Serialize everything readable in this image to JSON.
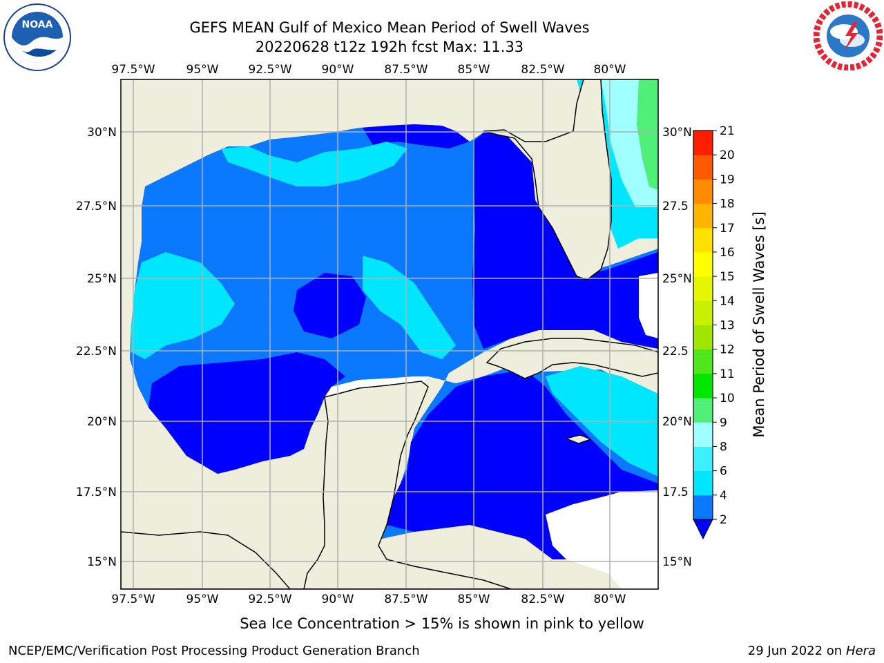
{
  "title": {
    "line1": "GEFS MEAN Gulf of Mexico Mean Period of Swell Waves",
    "line2": "20220628 t12z 192h fcst   Max: 11.33"
  },
  "logos": {
    "left": {
      "icon": "noaa-logo",
      "text": "NOAA",
      "ring_text": "NATIONAL OCEANIC AND ATMOSPHERIC ADMINISTRATION · U.S. DEPARTMENT OF COMMERCE"
    },
    "right": {
      "icon": "nws-logo",
      "ring_text": "NATIONAL WEATHER SERVICE"
    }
  },
  "map": {
    "lon_labels": [
      "97.5°W",
      "95°W",
      "92.5°W",
      "90°W",
      "87.5°W",
      "85°W",
      "82.5°W",
      "80°W"
    ],
    "lat_labels_left": [
      "30°N",
      "27.5°N",
      "25°N",
      "22.5°N",
      "20°N",
      "17.5°N",
      "15°N"
    ],
    "lat_labels_right": [
      "30°N",
      "27.5",
      "25°N",
      "22.5",
      "20°N",
      "17.5",
      "15°N"
    ],
    "colors": {
      "land": "#efeedc",
      "no_swell": "#ffffff",
      "grid": "#b0b0b0"
    }
  },
  "colorbar": {
    "label": "Mean Period of Swell Waves [s]",
    "ticks": [
      "2",
      "4",
      "6",
      "8",
      "9",
      "10",
      "11",
      "12",
      "13",
      "14",
      "15",
      "16",
      "17",
      "18",
      "19",
      "20",
      "21"
    ],
    "colors": [
      "#0a78ff",
      "#00e6ff",
      "#3cf0ff",
      "#a0ffff",
      "#50f078",
      "#00e600",
      "#50e61e",
      "#a0e600",
      "#c8f000",
      "#e6f500",
      "#ffff00",
      "#ffe100",
      "#ffb400",
      "#ff8c00",
      "#ff5a00",
      "#ff1e00"
    ],
    "under_color": "#0000ff"
  },
  "footnote": "Sea Ice Concentration > 15% is shown in pink to yellow",
  "credit": {
    "left": "NCEP/EMC/Verification Post Processing Product Generation Branch",
    "right_prefix": "29 Jun 2022 on",
    "right_host": "Hera"
  }
}
